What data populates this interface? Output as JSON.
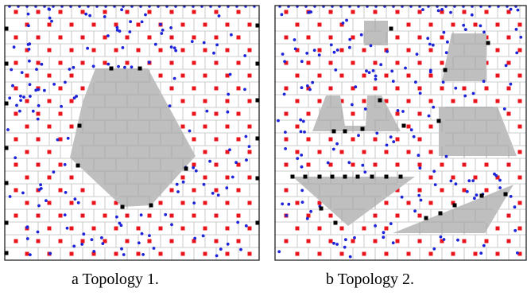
{
  "figure": {
    "panels": [
      {
        "id": "a",
        "caption": "a Topology 1.",
        "frame": [
          6,
          7,
          326,
          327
        ],
        "obstacles": [
          [
            [
              120,
              86
            ],
            [
              186,
              86
            ],
            [
              246,
              196
            ],
            [
              190,
              258
            ],
            [
              154,
              260
            ],
            [
              88,
              198
            ],
            [
              104,
              128
            ]
          ]
        ],
        "boundary_markers": [
          [
            140,
            86
          ],
          [
            176,
            86
          ],
          [
            100,
            158
          ],
          [
            98,
            208
          ],
          [
            234,
            212
          ],
          [
            154,
            260
          ],
          [
            190,
            258
          ],
          [
            8,
            36
          ],
          [
            8,
            80
          ],
          [
            8,
            130
          ],
          [
            8,
            186
          ],
          [
            8,
            230
          ],
          [
            8,
            280
          ],
          [
            8,
            318
          ],
          [
            324,
            32
          ],
          [
            324,
            80
          ],
          [
            324,
            126
          ],
          [
            324,
            174
          ],
          [
            324,
            224
          ],
          [
            324,
            280
          ]
        ]
      },
      {
        "id": "b",
        "caption": "b Topology 2.",
        "frame": [
          346,
          7,
          662,
          327
        ],
        "obstacles": [
          [
            [
              458,
              26
            ],
            [
              488,
              26
            ],
            [
              488,
              57
            ],
            [
              458,
              57
            ]
          ],
          [
            [
              568,
              42
            ],
            [
              612,
              42
            ],
            [
              612,
              102
            ],
            [
              556,
              102
            ]
          ],
          [
            [
              410,
              120
            ],
            [
              428,
              120
            ],
            [
              434,
              158
            ],
            [
              460,
              158
            ],
            [
              462,
              120
            ],
            [
              480,
              120
            ],
            [
              504,
              165
            ],
            [
              393,
              165
            ]
          ],
          [
            [
              552,
              134
            ],
            [
              626,
              134
            ],
            [
              650,
              196
            ],
            [
              552,
              196
            ]
          ],
          [
            [
              368,
              222
            ],
            [
              522,
              222
            ],
            [
              438,
              284
            ]
          ],
          [
            [
              494,
              293
            ],
            [
              646,
              232
            ],
            [
              610,
              293
            ]
          ]
        ],
        "boundary_markers": [
          [
            492,
            36
          ],
          [
            614,
            54
          ],
          [
            560,
            88
          ],
          [
            478,
            126
          ],
          [
            508,
            158
          ],
          [
            420,
            165
          ],
          [
            434,
            165
          ],
          [
            456,
            162
          ],
          [
            552,
            152
          ],
          [
            368,
            222
          ],
          [
            384,
            222
          ],
          [
            402,
            222
          ],
          [
            418,
            222
          ],
          [
            434,
            222
          ],
          [
            450,
            222
          ],
          [
            468,
            222
          ],
          [
            486,
            222
          ],
          [
            504,
            222
          ],
          [
            404,
            262
          ],
          [
            422,
            280
          ],
          [
            536,
            274
          ],
          [
            554,
            268
          ],
          [
            572,
            258
          ],
          [
            606,
            246
          ],
          [
            636,
            244
          ]
        ]
      }
    ],
    "colors": {
      "grid": "#bcbcbc",
      "frame": "#222222",
      "obstacle": "#bfbfbf",
      "red_marker": "#e8141c",
      "blue_marker": "#1d24d8",
      "black_marker": "#000000"
    }
  }
}
